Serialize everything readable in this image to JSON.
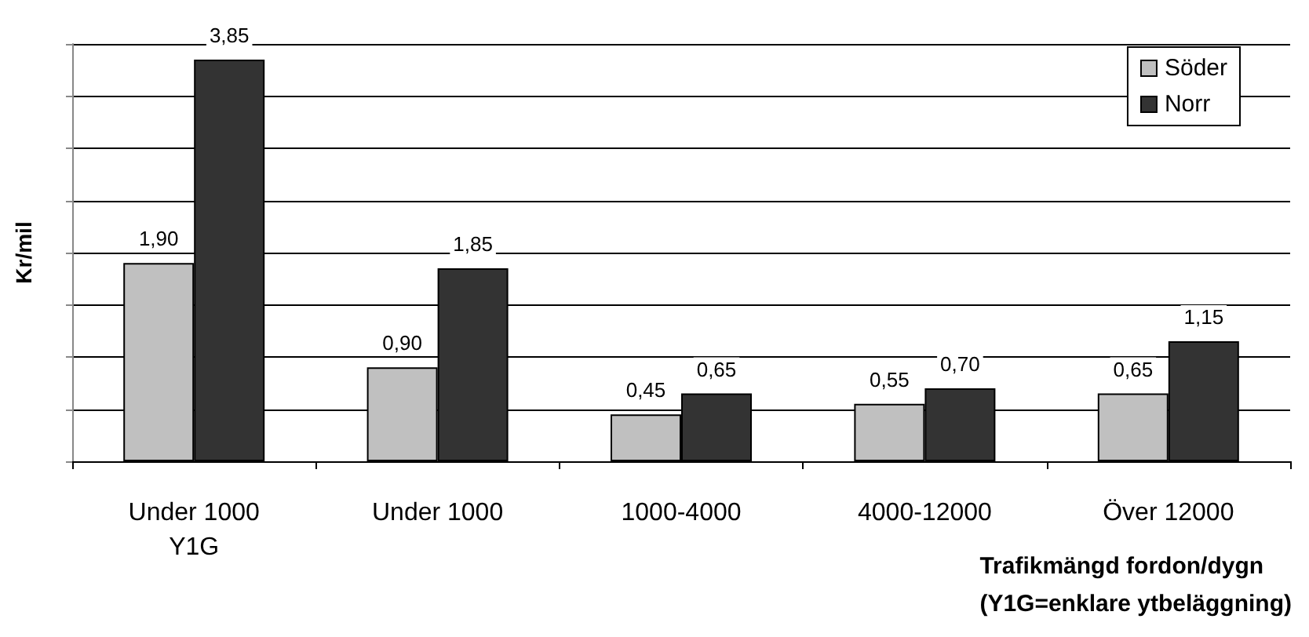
{
  "chart_data": {
    "type": "bar",
    "ylabel": "Kr/mil",
    "xlabel": "Trafikmängd fordon/dygn\n(Y1G=enklare ytbeläggning)",
    "categories": [
      "Under 1000\nY1G",
      "Under 1000",
      "1000-4000",
      "4000-12000",
      "Över 12000"
    ],
    "series": [
      {
        "name": "Söder",
        "color": "#c0c0c0",
        "values": [
          1.9,
          0.9,
          0.45,
          0.55,
          0.65
        ],
        "value_labels": [
          "1,90",
          "0,90",
          "0,45",
          "0,55",
          "0,65"
        ]
      },
      {
        "name": "Norr",
        "color": "#333333",
        "values": [
          3.85,
          1.85,
          0.65,
          0.7,
          1.15
        ],
        "value_labels": [
          "3,85",
          "1,85",
          "0,65",
          "0,70",
          "1,15"
        ]
      }
    ],
    "ylim": [
      0,
      4
    ],
    "yticks": [
      {
        "value": 0,
        "label": null
      },
      {
        "value": 0.5,
        "label": null
      },
      {
        "value": 1,
        "label": null
      },
      {
        "value": 1.5,
        "label": null
      },
      {
        "value": 2,
        "label": null
      },
      {
        "value": 2.5,
        "label": null
      },
      {
        "value": 3,
        "label": null
      },
      {
        "value": 3.5,
        "label": null
      },
      {
        "value": 4,
        "label": null
      }
    ],
    "grid": "y",
    "legend": "top right",
    "tick_labels": "x"
  }
}
